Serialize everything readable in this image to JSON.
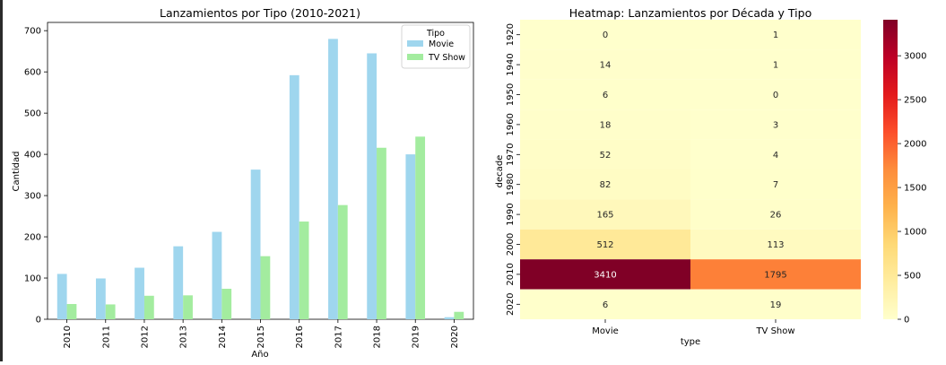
{
  "chart_data": [
    {
      "type": "bar",
      "title": "Lanzamientos por Tipo (2010-2021)",
      "xlabel": "Año",
      "ylabel": "Cantidad",
      "ylim": [
        0,
        720
      ],
      "yticks": [
        0,
        100,
        200,
        300,
        400,
        500,
        600,
        700
      ],
      "categories": [
        "2010",
        "2011",
        "2012",
        "2013",
        "2014",
        "2015",
        "2016",
        "2017",
        "2018",
        "2019",
        "2020"
      ],
      "legend": {
        "title": "Tipo",
        "placement": "top-right"
      },
      "series": [
        {
          "name": "Movie",
          "color": "#9fd6ee",
          "values": [
            110,
            99,
            125,
            177,
            212,
            363,
            592,
            680,
            645,
            400,
            5
          ]
        },
        {
          "name": "TV Show",
          "color": "#a3ec9f",
          "values": [
            37,
            36,
            57,
            58,
            74,
            153,
            237,
            277,
            416,
            443,
            18
          ]
        }
      ]
    },
    {
      "type": "heatmap",
      "title": "Heatmap: Lanzamientos por Década y Tipo",
      "xlabel": "type",
      "ylabel": "decade",
      "columns": [
        "Movie",
        "TV Show"
      ],
      "rows": [
        "1920",
        "1940",
        "1950",
        "1960",
        "1970",
        "1980",
        "1990",
        "2000",
        "2010",
        "2020"
      ],
      "values": [
        [
          0,
          1
        ],
        [
          14,
          1
        ],
        [
          6,
          0
        ],
        [
          18,
          3
        ],
        [
          52,
          4
        ],
        [
          82,
          7
        ],
        [
          165,
          26
        ],
        [
          512,
          113
        ],
        [
          3410,
          1795
        ],
        [
          6,
          19
        ]
      ],
      "colorscale": "YlOrRd",
      "vmin": 0,
      "vmax": 3410,
      "colorbar_ticks": [
        0,
        500,
        1000,
        1500,
        2000,
        2500,
        3000
      ]
    }
  ]
}
